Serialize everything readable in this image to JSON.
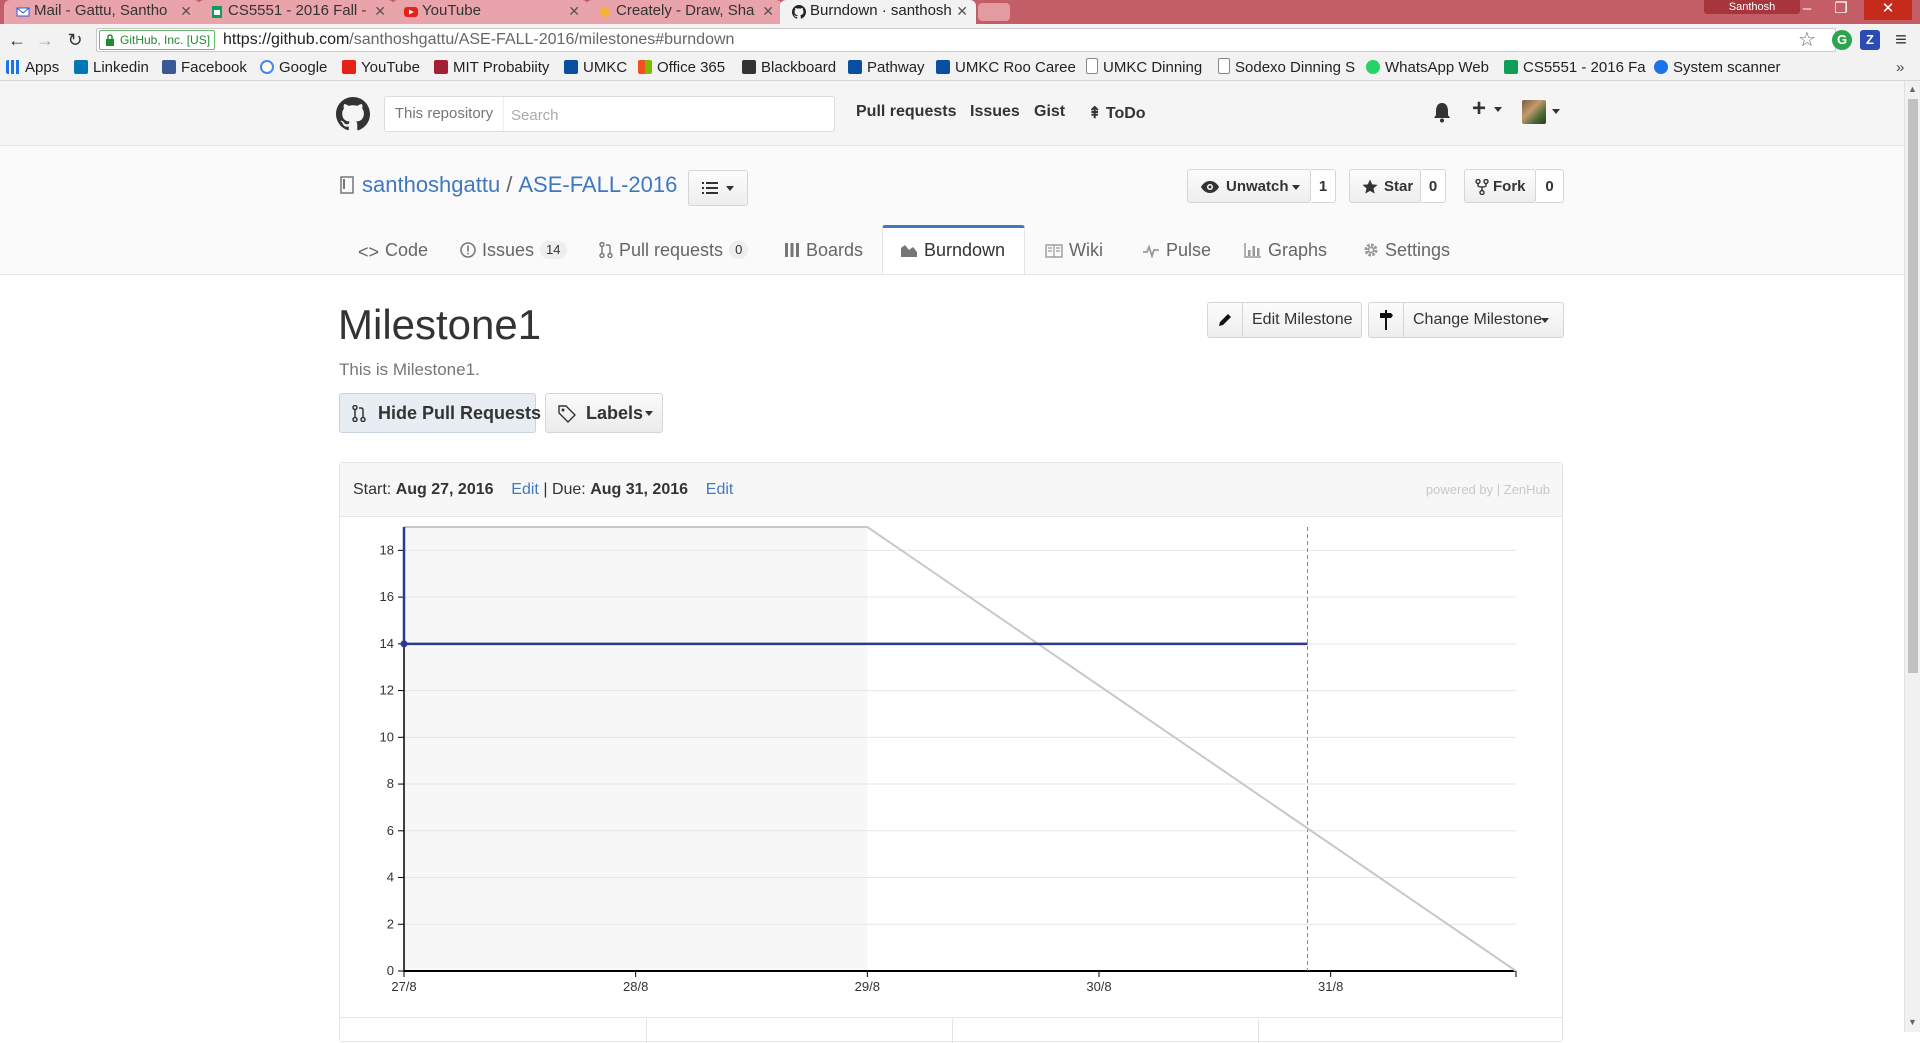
{
  "browser": {
    "tabs": [
      {
        "title": "Mail - Gattu, Santho",
        "icon": "mail-icon"
      },
      {
        "title": "CS5551 - 2016 Fall -",
        "icon": "sheets-icon"
      },
      {
        "title": "YouTube",
        "icon": "youtube-icon"
      },
      {
        "title": "Creately - Draw, Sha",
        "icon": "creately-icon"
      },
      {
        "title": "Burndown · santhosh",
        "icon": "github-icon"
      }
    ],
    "profile_name": "Santhosh",
    "window_controls": {
      "minimize": "–",
      "restore": "❐",
      "close": "✕"
    },
    "ev_badge": "GitHub, Inc. [US]",
    "url_host": "https://github.com",
    "url_path": "/santhoshgattu/ASE-FALL-2016/milestones#burndown",
    "nav": {
      "back": "←",
      "forward": "→",
      "reload": "↻",
      "star": "☆",
      "menu": "≡"
    },
    "bookmarks": [
      {
        "label": "Apps",
        "color": "#1a73e8"
      },
      {
        "label": "Linkedin",
        "color": "#0077b5"
      },
      {
        "label": "Facebook",
        "color": "#3b5998"
      },
      {
        "label": "Google",
        "color": "#4285f4"
      },
      {
        "label": "YouTube",
        "color": "#e62117"
      },
      {
        "label": "MIT Probabiity",
        "color": "#a31f34"
      },
      {
        "label": "UMKC",
        "color": "#0a4ea0"
      },
      {
        "label": "Office 365",
        "color": "#eb3c00"
      },
      {
        "label": "Blackboard",
        "color": "#333333"
      },
      {
        "label": "Pathway",
        "color": "#0a4ea0"
      },
      {
        "label": "UMKC Roo Caree",
        "color": "#0a4ea0"
      },
      {
        "label": "UMKC Dinning",
        "color": "#888888"
      },
      {
        "label": "Sodexo Dinning S",
        "color": "#888888"
      },
      {
        "label": "WhatsApp Web",
        "color": "#25d366"
      },
      {
        "label": "CS5551 - 2016 Fa",
        "color": "#0f9d58"
      },
      {
        "label": "System scanner",
        "color": "#1a73e8"
      }
    ],
    "bookmarks_more": "»"
  },
  "header": {
    "scope_label": "This repository",
    "search_placeholder": "Search",
    "nav": [
      "Pull requests",
      "Issues",
      "Gist",
      "ToDo"
    ]
  },
  "repo": {
    "owner": "santhoshgattu",
    "separator": "/",
    "name": "ASE-FALL-2016",
    "watch": {
      "label": "Unwatch",
      "count": "1"
    },
    "star": {
      "label": "Star",
      "count": "0"
    },
    "fork": {
      "label": "Fork",
      "count": "0"
    },
    "tabs": [
      {
        "label": "Code"
      },
      {
        "label": "Issues",
        "count": "14"
      },
      {
        "label": "Pull requests",
        "count": "0"
      },
      {
        "label": "Boards"
      },
      {
        "label": "Burndown"
      },
      {
        "label": "Wiki"
      },
      {
        "label": "Pulse"
      },
      {
        "label": "Graphs"
      },
      {
        "label": "Settings"
      }
    ],
    "selected_tab": "Burndown"
  },
  "milestone": {
    "title": "Milestone1",
    "description": "This is Milestone1.",
    "edit_button": "Edit Milestone",
    "change_button": "Change Milestone",
    "hide_pr_button": "Hide Pull Requests",
    "labels_button": "Labels"
  },
  "burndown": {
    "start_label": "Start:",
    "start_date": "Aug 27, 2016",
    "edit": "Edit",
    "divider": "|",
    "due_label": "Due:",
    "due_date": "Aug 31, 2016",
    "powered_prefix": "powered by",
    "powered_brand": "ZenHub"
  },
  "chart_data": {
    "type": "line",
    "x_ticks": [
      "27/8",
      "28/8",
      "29/8",
      "30/8",
      "31/8"
    ],
    "y_ticks": [
      0,
      2,
      4,
      6,
      8,
      10,
      12,
      14,
      16,
      18
    ],
    "ylim": [
      0,
      19
    ],
    "x_domain": [
      0,
      4.8
    ],
    "shaded_range": [
      0,
      2
    ],
    "today_marker_x": 3.9,
    "series": [
      {
        "role": "ideal",
        "color": "#c8c8c8",
        "points": [
          [
            0,
            19
          ],
          [
            2,
            19
          ],
          [
            4.8,
            0
          ]
        ]
      },
      {
        "role": "remaining",
        "color": "#2b3a8f",
        "points": [
          [
            0,
            14
          ],
          [
            3.9,
            14
          ]
        ]
      }
    ],
    "grid": true,
    "colors": {
      "axis": "#000000",
      "grid": "#e6e6e6",
      "shade": "#f7f7f7",
      "today": "#7b7bf0"
    }
  }
}
